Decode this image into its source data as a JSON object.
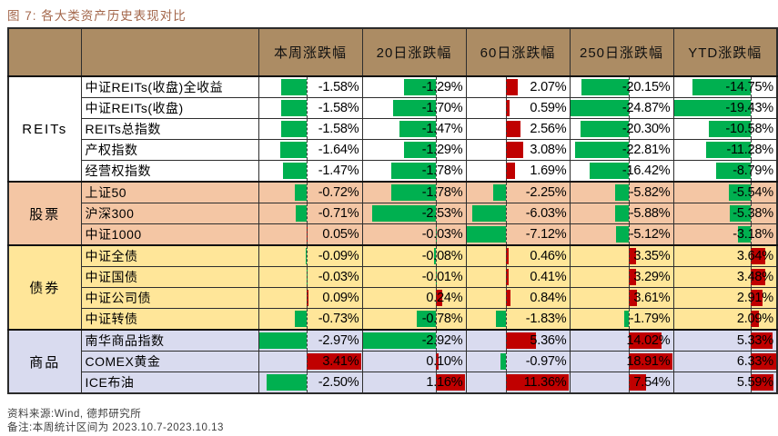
{
  "title": "图 7: 各大类资产历史表现对比",
  "footer": {
    "source": "资料来源:Wind, 德邦研究所",
    "note": "备注:本周统计区间为 2023.10.7-2023.10.13"
  },
  "colors": {
    "header_bg": "#AC8C64",
    "bar_negative": "#00B050",
    "bar_positive": "#C00000",
    "group_reits_bg": "#FFFFFF",
    "group_stocks_bg": "#F4C6A4",
    "group_bonds_bg": "#FFE699",
    "group_commodities_bg": "#D9DBEF",
    "title_color": "#A3664A"
  },
  "chart_data": {
    "type": "table",
    "title": "各大类资产历史表现对比",
    "value_unit": "%",
    "bar_style": "excel-data-bars, negative=green leftward, positive=red rightward, per-column zero axis",
    "columns": [
      "本周涨跌幅",
      "20日涨跌幅",
      "60日涨跌幅",
      "250日涨跌幅",
      "YTD涨跌幅"
    ],
    "groups": [
      {
        "category": "REITs",
        "bg": "#FFFFFF",
        "rows": [
          {
            "name": "中证REITs(收盘)全收益",
            "values": [
              -1.58,
              -1.29,
              2.07,
              -20.15,
              -14.75
            ]
          },
          {
            "name": "中证REITs(收盘)",
            "values": [
              -1.58,
              -1.7,
              0.59,
              -24.87,
              -19.43
            ]
          },
          {
            "name": "REITs总指数",
            "values": [
              -1.58,
              -1.47,
              2.56,
              -20.3,
              -10.58
            ]
          },
          {
            "name": "产权指数",
            "values": [
              -1.64,
              -1.29,
              3.08,
              -22.81,
              -11.28
            ]
          },
          {
            "name": "经营权指数",
            "values": [
              -1.47,
              -1.78,
              1.69,
              -16.42,
              -8.79
            ]
          }
        ]
      },
      {
        "category": "股票",
        "bg": "#F4C6A4",
        "rows": [
          {
            "name": "上证50",
            "values": [
              -0.72,
              -1.78,
              -2.25,
              -5.82,
              -5.54
            ]
          },
          {
            "name": "沪深300",
            "values": [
              -0.71,
              -2.53,
              -6.03,
              -5.88,
              -5.38
            ]
          },
          {
            "name": "中证1000",
            "values": [
              0.05,
              -0.03,
              -7.12,
              -5.12,
              -3.18
            ]
          }
        ]
      },
      {
        "category": "债券",
        "bg": "#FFE699",
        "rows": [
          {
            "name": "中证全债",
            "values": [
              -0.09,
              -0.08,
              0.46,
              3.35,
              3.64
            ]
          },
          {
            "name": "中证国债",
            "values": [
              -0.03,
              -0.01,
              0.41,
              3.29,
              3.48
            ]
          },
          {
            "name": "中证公司债",
            "values": [
              0.09,
              0.24,
              0.84,
              3.61,
              2.91
            ]
          },
          {
            "name": "中证转债",
            "values": [
              -0.73,
              -0.78,
              -1.83,
              -1.79,
              2.09
            ]
          }
        ]
      },
      {
        "category": "商品",
        "bg": "#D9DBEF",
        "rows": [
          {
            "name": "南华商品指数",
            "values": [
              -2.97,
              -2.92,
              5.36,
              14.02,
              5.33
            ]
          },
          {
            "name": "COMEX黄金",
            "values": [
              3.41,
              0.1,
              -0.97,
              18.91,
              6.33
            ]
          },
          {
            "name": "ICE布油",
            "values": [
              -2.5,
              1.16,
              11.36,
              7.54,
              5.59
            ]
          }
        ]
      }
    ]
  }
}
